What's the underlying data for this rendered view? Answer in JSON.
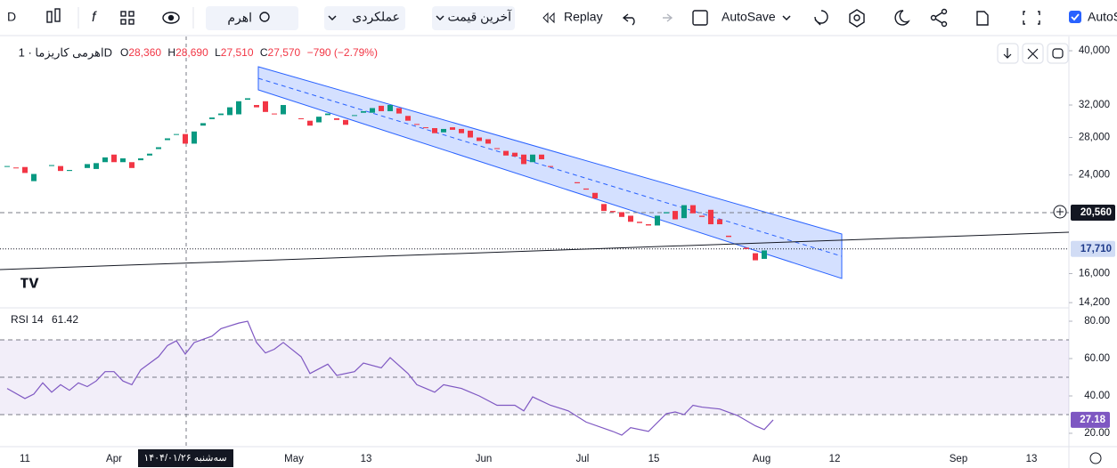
{
  "toolbar": {
    "symbol_code": "D",
    "search": "اهرم",
    "indicators": "عملکردی",
    "price_type": "آخرین قیمت",
    "replay": "Replay",
    "autosave": "AutoSave",
    "autosave_cut": "AutoSa"
  },
  "legend": {
    "symbol": "اهرمی کاریزما · 1D",
    "open": {
      "label": "O",
      "value": "28,360"
    },
    "high": {
      "label": "H",
      "value": "28,690"
    },
    "low": {
      "label": "L",
      "value": "27,510"
    },
    "close": {
      "label": "C",
      "value": "27,570"
    },
    "change": "−790 (−2.79%)"
  },
  "crosshair_label": "سه‌شنبه ۱۴۰۴/۰۱/۲۶",
  "chart_data": [
    {
      "type": "candlestick",
      "log_scale": true,
      "up_color": "#089981",
      "down_color": "#f23645",
      "ylim": [
        13950,
        41800
      ],
      "yticks": [
        {
          "value": 40000,
          "label": "40,000"
        },
        {
          "value": 32000,
          "label": "32,000"
        },
        {
          "value": 28000,
          "label": "28,000"
        },
        {
          "value": 24000,
          "label": "24,000"
        },
        {
          "value": 16000,
          "label": "16,000"
        },
        {
          "value": 14200,
          "label": "14,200"
        }
      ],
      "xticks": [
        {
          "value": 0,
          "label": "11"
        },
        {
          "value": 10,
          "label": "Apr"
        },
        {
          "value": 30.2,
          "label": "May"
        },
        {
          "value": 38.3,
          "label": "13"
        },
        {
          "value": 51.5,
          "label": "Jun"
        },
        {
          "value": 62.6,
          "label": "Jul"
        },
        {
          "value": 70.6,
          "label": "15"
        },
        {
          "value": 82.7,
          "label": "Aug"
        },
        {
          "value": 90.9,
          "label": "12"
        },
        {
          "value": 104.8,
          "label": "Sep"
        },
        {
          "value": 113,
          "label": "13"
        }
      ],
      "price_lines": [
        {
          "value": 20560,
          "label": "20,560"
        },
        {
          "value": 17710,
          "label": "17,710"
        }
      ],
      "x": [
        -2,
        -1,
        0,
        1,
        3,
        4,
        5,
        7,
        8,
        9,
        10,
        11,
        12,
        13,
        14,
        15,
        16,
        17,
        18,
        19,
        20,
        21,
        22,
        23,
        24,
        25,
        26,
        27,
        28,
        29,
        31,
        32,
        33,
        34,
        35,
        36,
        37,
        38,
        39,
        40,
        41,
        42,
        43,
        44,
        45,
        46,
        47,
        48,
        49,
        50,
        51,
        52,
        53,
        54,
        55,
        56,
        57,
        58,
        59,
        62,
        63,
        64,
        65,
        66,
        67,
        68,
        69,
        70,
        71,
        72,
        73,
        74,
        75,
        76,
        77,
        78,
        79,
        81,
        82,
        83
      ],
      "open": [
        24900,
        24750,
        24800,
        23400,
        24900,
        24900,
        24400,
        24700,
        24600,
        25300,
        26100,
        25300,
        25300,
        25500,
        26000,
        26700,
        27700,
        28300,
        28400,
        27300,
        29400,
        30200,
        30700,
        30700,
        30800,
        32700,
        32000,
        32500,
        30900,
        30800,
        30300,
        30000,
        29800,
        30700,
        30300,
        30100,
        30600,
        31000,
        31000,
        31900,
        31200,
        31600,
        30600,
        29600,
        29200,
        29100,
        28600,
        29200,
        29000,
        28800,
        28000,
        27800,
        26800,
        26500,
        26300,
        26100,
        25300,
        26100,
        24900,
        23300,
        22700,
        22300,
        21300,
        20700,
        20600,
        20300,
        19800,
        19600,
        19500,
        20500,
        20700,
        20100,
        21200,
        20300,
        20800,
        20000,
        18700,
        17800,
        17400,
        17000
      ],
      "close": [
        24900,
        24700,
        24200,
        24100,
        25000,
        24400,
        24500,
        25100,
        25200,
        25800,
        25300,
        25700,
        24700,
        25700,
        26200,
        26900,
        27900,
        28400,
        27300,
        28700,
        29700,
        30400,
        30900,
        31700,
        32500,
        32900,
        31700,
        31100,
        30800,
        32000,
        30200,
        29400,
        30500,
        30900,
        30100,
        29500,
        30700,
        31200,
        31600,
        31200,
        32000,
        30900,
        30000,
        29500,
        29100,
        28500,
        29000,
        28900,
        28500,
        28000,
        27600,
        27300,
        26700,
        26000,
        25900,
        25100,
        26100,
        25600,
        24800,
        23200,
        22600,
        21800,
        20700,
        20600,
        20200,
        19800,
        19700,
        19500,
        20300,
        20600,
        20000,
        21200,
        20500,
        20200,
        19600,
        19600,
        18600,
        17700,
        16900,
        17600
      ]
    },
    {
      "type": "line",
      "name": "RSI 14",
      "legend_value": 61.42,
      "color": "#7e57c2",
      "ylim": [
        13.8,
        86.2
      ],
      "yticks": [
        {
          "value": 80,
          "label": "80.00"
        },
        {
          "value": 60,
          "label": "60.00"
        },
        {
          "value": 40,
          "label": "40.00"
        },
        {
          "value": 20,
          "label": "20.00"
        }
      ],
      "bands": [
        70,
        50,
        30
      ],
      "last_value": 27.18,
      "x": [
        -2,
        0,
        1,
        2,
        3,
        4,
        5,
        6,
        7,
        8,
        9,
        10,
        11,
        12,
        13,
        15,
        16,
        17,
        18,
        19,
        21,
        22,
        24,
        25,
        26,
        27,
        28,
        29,
        31,
        32,
        34,
        35,
        37,
        38,
        40,
        41,
        43,
        44,
        45,
        46,
        47,
        49,
        50,
        51,
        53,
        55,
        56,
        57,
        59,
        61,
        63,
        66,
        67,
        68,
        70,
        72,
        73,
        74,
        75,
        76,
        78,
        80,
        82,
        83,
        84
      ],
      "values": [
        44,
        38.6,
        41,
        47,
        42,
        46,
        43,
        47,
        45,
        48,
        53,
        53,
        48,
        46,
        54,
        61,
        67,
        69.5,
        62.4,
        68.6,
        72,
        76,
        79,
        80,
        68.6,
        63,
        65,
        68.6,
        61,
        52,
        57,
        51,
        53,
        57.6,
        55,
        60.5,
        52,
        46,
        44,
        42,
        46,
        44,
        42,
        40,
        35,
        35,
        32,
        39.5,
        35,
        32,
        26,
        21,
        19,
        23,
        21,
        30.5,
        31.4,
        30,
        35,
        34,
        33,
        29.5,
        24,
        22,
        27.18
      ]
    }
  ]
}
